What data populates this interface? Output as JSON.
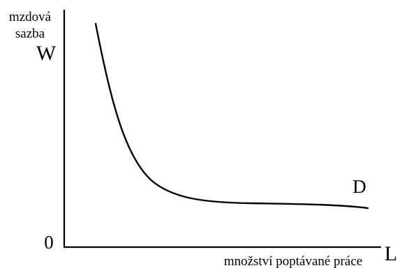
{
  "figure": {
    "y_axis_label_line1": "mzdová",
    "y_axis_label_line2": "sazba",
    "y_axis_symbol": "W",
    "x_axis_label": "množství poptávané práce",
    "x_axis_symbol": "L",
    "origin_label": "0",
    "curve_label": "D",
    "colors": {
      "line": "#000000",
      "background": "#ffffff"
    }
  }
}
